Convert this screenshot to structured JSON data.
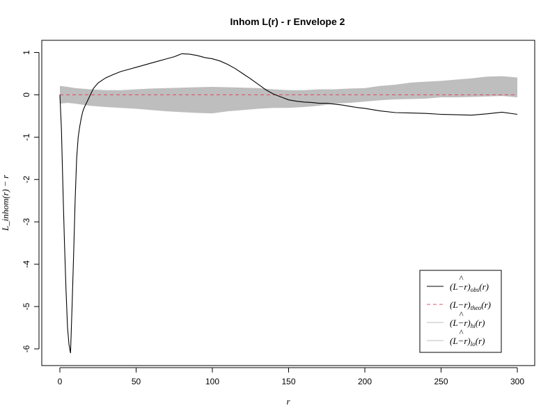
{
  "chart_data": {
    "type": "line",
    "title": "Inhom L(r) - r Envelope 2",
    "xlabel": "r",
    "ylabel": "L_inhom(r) − r",
    "xlim": [
      0,
      300
    ],
    "ylim": [
      -6.2,
      1.2
    ],
    "x_ticks": [
      0,
      50,
      100,
      150,
      200,
      250,
      300
    ],
    "y_ticks": [
      1,
      0,
      -1,
      -2,
      -3,
      -4,
      -5,
      -6
    ],
    "grid": false,
    "legend_position": "bottom-right",
    "legend": [
      {
        "label": "(L̂−r)_obs(r)",
        "main": "(L",
        "hat": "^",
        "rest": "−r)",
        "sub": "obs",
        "tail": "(r)",
        "color": "#000000",
        "dash": "none"
      },
      {
        "label": "(L−r)_theo(r)",
        "main": "(L−r)",
        "hat": "",
        "rest": "",
        "sub": "theo",
        "tail": "(r)",
        "color": "#DF536B",
        "dash": "5,4"
      },
      {
        "label": "(L̂−r)_hi(r)",
        "main": "(L",
        "hat": "^",
        "rest": "−r)",
        "sub": "hi",
        "tail": "(r)",
        "color": "#BEBEBE",
        "dash": "none"
      },
      {
        "label": "(L̂−r)_lo(r)",
        "main": "(L",
        "hat": "^",
        "rest": "−r)",
        "sub": "lo",
        "tail": "(r)",
        "color": "#BEBEBE",
        "dash": "none"
      }
    ],
    "series": [
      {
        "name": "obs",
        "color": "#000000",
        "x": [
          0,
          1,
          2,
          3,
          4,
          5,
          6,
          7,
          8,
          9,
          10,
          11,
          12,
          13,
          14,
          15,
          16,
          18,
          20,
          22,
          25,
          30,
          35,
          40,
          45,
          50,
          55,
          60,
          65,
          70,
          75,
          80,
          85,
          90,
          95,
          100,
          105,
          110,
          115,
          120,
          125,
          130,
          135,
          140,
          145,
          150,
          155,
          160,
          165,
          170,
          175,
          180,
          185,
          190,
          195,
          200,
          210,
          220,
          230,
          240,
          250,
          260,
          270,
          280,
          290,
          300
        ],
        "y": [
          0,
          -0.8,
          -2.2,
          -3.5,
          -4.6,
          -5.5,
          -5.9,
          -6.1,
          -5.0,
          -3.8,
          -2.5,
          -1.5,
          -1.0,
          -0.75,
          -0.55,
          -0.4,
          -0.3,
          -0.15,
          0.0,
          0.15,
          0.28,
          0.4,
          0.48,
          0.55,
          0.6,
          0.65,
          0.7,
          0.75,
          0.8,
          0.85,
          0.9,
          0.97,
          0.96,
          0.93,
          0.88,
          0.85,
          0.8,
          0.72,
          0.62,
          0.5,
          0.38,
          0.25,
          0.12,
          0.02,
          -0.05,
          -0.12,
          -0.15,
          -0.17,
          -0.18,
          -0.2,
          -0.2,
          -0.22,
          -0.24,
          -0.27,
          -0.3,
          -0.32,
          -0.38,
          -0.42,
          -0.43,
          -0.44,
          -0.46,
          -0.47,
          -0.48,
          -0.45,
          -0.41,
          -0.46
        ]
      },
      {
        "name": "theo",
        "color": "#DF536B",
        "x": [
          0,
          300
        ],
        "y": [
          0,
          0
        ]
      },
      {
        "name": "hi",
        "color": "#BEBEBE",
        "x": [
          0,
          5,
          10,
          20,
          30,
          40,
          50,
          60,
          70,
          80,
          90,
          100,
          110,
          120,
          130,
          140,
          150,
          160,
          170,
          180,
          190,
          200,
          210,
          220,
          230,
          240,
          250,
          260,
          270,
          280,
          290,
          300
        ],
        "y": [
          0.2,
          0.18,
          0.15,
          0.12,
          0.1,
          0.1,
          0.12,
          0.14,
          0.15,
          0.16,
          0.17,
          0.18,
          0.17,
          0.16,
          0.15,
          0.12,
          0.1,
          0.1,
          0.12,
          0.12,
          0.14,
          0.15,
          0.2,
          0.23,
          0.28,
          0.3,
          0.32,
          0.35,
          0.38,
          0.42,
          0.43,
          0.4
        ]
      },
      {
        "name": "lo",
        "color": "#BEBEBE",
        "x": [
          0,
          5,
          10,
          20,
          30,
          40,
          50,
          60,
          70,
          80,
          90,
          100,
          110,
          120,
          130,
          140,
          150,
          160,
          170,
          180,
          190,
          200,
          210,
          220,
          230,
          240,
          250,
          260,
          270,
          280,
          290,
          300
        ],
        "y": [
          -0.2,
          -0.18,
          -0.2,
          -0.25,
          -0.28,
          -0.3,
          -0.32,
          -0.35,
          -0.38,
          -0.4,
          -0.42,
          -0.43,
          -0.38,
          -0.35,
          -0.32,
          -0.3,
          -0.3,
          -0.28,
          -0.25,
          -0.2,
          -0.18,
          -0.15,
          -0.12,
          -0.1,
          -0.09,
          -0.08,
          -0.05,
          -0.05,
          -0.04,
          -0.03,
          -0.02,
          -0.05
        ]
      }
    ]
  }
}
